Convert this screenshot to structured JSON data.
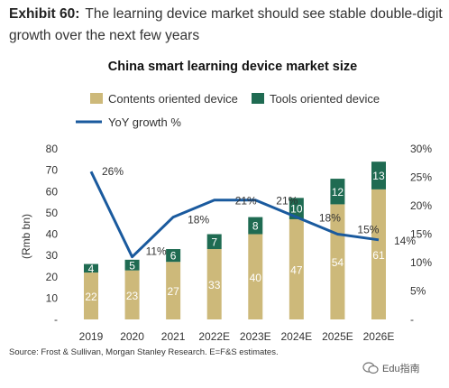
{
  "exhibit": {
    "label": "Exhibit 60:",
    "text": "The learning device market should see stable double-digit growth over the next few years"
  },
  "colors": {
    "contents": "#CDB97A",
    "tools": "#1F6B52",
    "yoy": "#1A5A9E",
    "axis": "#333333"
  },
  "chart_data": {
    "type": "bar",
    "title": "China smart learning device market size",
    "categories": [
      "2019",
      "2020",
      "2021",
      "2022E",
      "2023E",
      "2024E",
      "2025E",
      "2026E"
    ],
    "series": [
      {
        "name": "Contents oriented device",
        "kind": "bar-stacked",
        "values": [
          22,
          23,
          27,
          33,
          40,
          47,
          54,
          61
        ],
        "labels": [
          "22",
          "23",
          "27",
          "33",
          "40",
          "47",
          "54",
          "61"
        ]
      },
      {
        "name": "Tools oriented device",
        "kind": "bar-stacked",
        "values": [
          4,
          5,
          6,
          7,
          8,
          10,
          12,
          13
        ],
        "labels": [
          "4",
          "5",
          "6",
          "7",
          "8",
          "10",
          "12",
          "13"
        ]
      },
      {
        "name": "YoY growth %",
        "kind": "line",
        "axis": "right",
        "values": [
          26,
          11,
          18,
          21,
          21,
          18,
          15,
          14
        ],
        "labels": [
          "26%",
          "11%",
          "18%",
          "21%",
          "21%",
          "18%",
          "15%",
          "14%"
        ]
      }
    ],
    "ylabel": "(Rmb bn)",
    "ylim": [
      0,
      80
    ],
    "yticks": [
      "80",
      "70",
      "60",
      "50",
      "40",
      "30",
      "20",
      "10",
      "-"
    ],
    "y2lim": [
      0,
      30
    ],
    "y2ticks": [
      "30%",
      "25%",
      "20%",
      "15%",
      "10%",
      "5%",
      "-"
    ],
    "legend_position": "top"
  },
  "source_note": "Source: Frost & Sullivan, Morgan Stanley Research. E=F&S estimates.",
  "watermark": "Edu指南"
}
